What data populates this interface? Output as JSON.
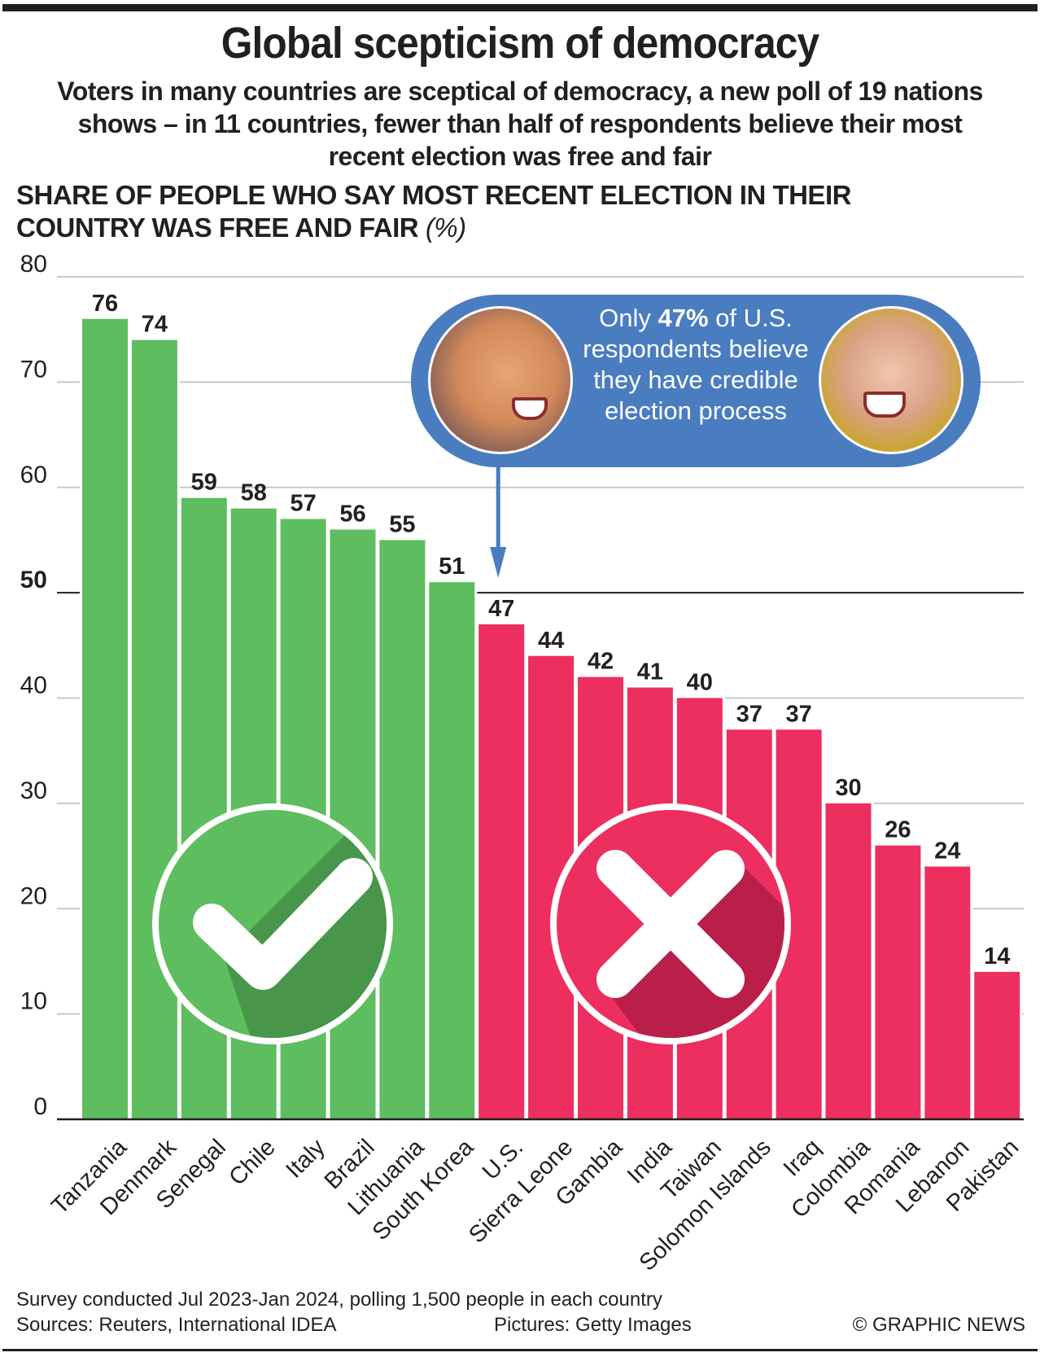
{
  "header": {
    "title": "Global scepticism of democracy",
    "subtitle": "Voters in many countries are sceptical of democracy, a new poll of 19 nations shows – in 11 countries, fewer than half of respondents believe their most recent election was free and fair",
    "chart_heading": "SHARE OF PEOPLE WHO SAY MOST RECENT ELECTION IN THEIR COUNTRY WAS FREE AND FAIR",
    "chart_heading_unit": "(%)"
  },
  "callout": {
    "text_before": "Only ",
    "highlight": "47%",
    "text_after": " of U.S. respondents believe they have credible election process",
    "points_to": "U.S.",
    "left_portrait": "portrait-icon",
    "right_portrait": "portrait-icon"
  },
  "icons": {
    "above_threshold": "checkmark-circle-icon",
    "below_threshold": "cross-circle-icon"
  },
  "colors": {
    "above": "#5ebd5e",
    "below": "#ec2f5f",
    "callout": "#4a7cc0",
    "text": "#231f20",
    "grid": "#c8c8c8"
  },
  "chart_data": {
    "type": "bar",
    "title": "Global scepticism of democracy",
    "ylabel": "Share of people who say most recent election in their country was free and fair (%)",
    "xlabel": "",
    "ylim": [
      0,
      80
    ],
    "yticks": [
      0,
      10,
      20,
      30,
      40,
      50,
      60,
      70,
      80
    ],
    "threshold": 50,
    "grid": true,
    "categories": [
      "Tanzania",
      "Denmark",
      "Senegal",
      "Chile",
      "Italy",
      "Brazil",
      "Lithuania",
      "South Korea",
      "U.S.",
      "Sierra Leone",
      "Gambia",
      "India",
      "Taiwan",
      "Solomon Islands",
      "Iraq",
      "Colombia",
      "Romania",
      "Lebanon",
      "Pakistan"
    ],
    "values": [
      76,
      74,
      59,
      58,
      57,
      56,
      55,
      51,
      47,
      44,
      42,
      41,
      40,
      37,
      37,
      30,
      26,
      24,
      14
    ]
  },
  "footer": {
    "survey_note": "Survey conducted Jul 2023-Jan 2024, polling 1,500 people in each country",
    "sources": "Sources: Reuters, International IDEA",
    "pictures": "Pictures: Getty Images",
    "copyright": "© GRAPHIC NEWS"
  }
}
